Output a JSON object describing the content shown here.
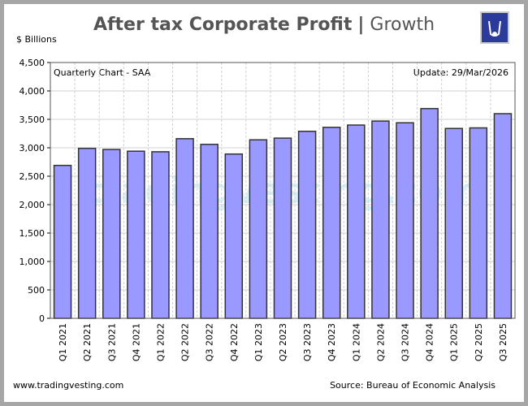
{
  "title": "After tax Corporate Profit",
  "title_separator": "|",
  "subtitle": "Growth",
  "chart_note_left": "Quarterly Chart - SAA",
  "chart_note_right": "Update: 29/Mar/2026",
  "footer_left": "www.tradingvesting.com",
  "footer_right": "Source: Bureau of Economic Analysis",
  "watermark": "tradingvesting.com",
  "colors": {
    "bar": "#9999ff",
    "bar_border": "#333333",
    "grid": "#d0d0d0",
    "frame": "#a6a6a6"
  },
  "chart_data": {
    "type": "bar",
    "ylabel": "$ Billions",
    "ylim": [
      0,
      4500
    ],
    "yticks": [
      0,
      500,
      1000,
      1500,
      2000,
      2500,
      3000,
      3500,
      4000,
      4500
    ],
    "ytick_labels": [
      "0",
      "500",
      "1,000",
      "1,500",
      "2,000",
      "2,500",
      "3,000",
      "3,500",
      "4,000",
      "4,500"
    ],
    "grid": true,
    "categories": [
      "Q1 2021",
      "Q2 2021",
      "Q3 2021",
      "Q4 2021",
      "Q1 2022",
      "Q2 2022",
      "Q3 2022",
      "Q4 2022",
      "Q1 2023",
      "Q2 2023",
      "Q3 2023",
      "Q4 2023",
      "Q1 2024",
      "Q2 2024",
      "Q3 2024",
      "Q4 2024",
      "Q1 2025",
      "Q2 2025",
      "Q3 2025"
    ],
    "values": [
      2690,
      2990,
      2970,
      2940,
      2930,
      3160,
      3060,
      2890,
      3140,
      3170,
      3290,
      3360,
      3400,
      3470,
      3440,
      3690,
      3340,
      3350,
      3600
    ]
  }
}
